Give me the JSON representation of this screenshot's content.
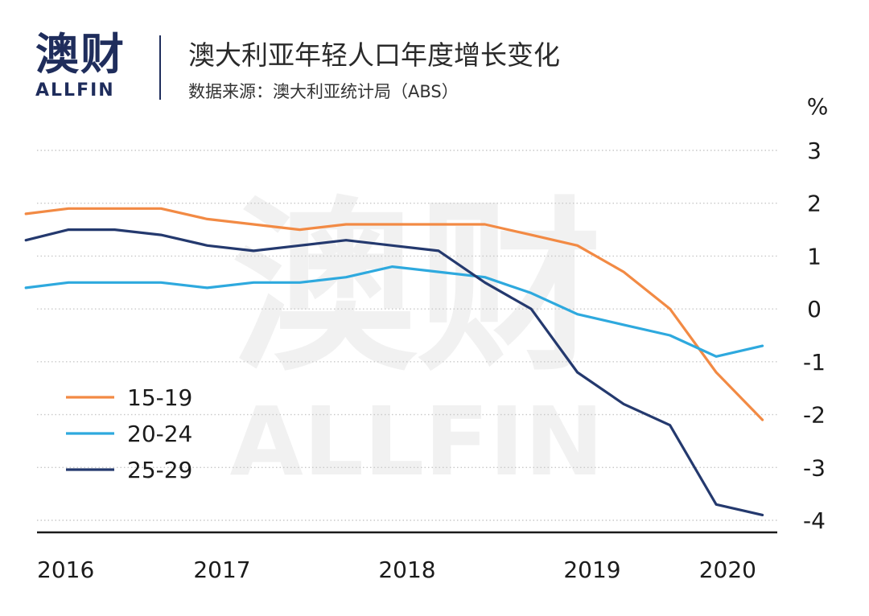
{
  "header": {
    "brand_cn": "澳财",
    "brand_en": "ALLFIN",
    "title": "澳大利亚年轻人口年度增长变化",
    "source": "数据来源：澳大利亚统计局（ABS）"
  },
  "watermark": {
    "cn": "澳财",
    "en": "ALLFIN"
  },
  "colors": {
    "s1519": "#f28a44",
    "s2024": "#2ea9de",
    "s2529": "#24396e",
    "brand": "#1f2d5c"
  },
  "chart_data": {
    "type": "line",
    "ylabel": "%",
    "ylim": [
      -4,
      3
    ],
    "yticks": [
      3,
      2,
      1,
      0,
      -1,
      -2,
      -3,
      -4
    ],
    "ytick_labels": [
      "3",
      "2",
      "1",
      "0",
      "-1",
      "-2",
      "-3",
      "-4"
    ],
    "xlim": [
      2016.0,
      2020.0
    ],
    "xticks": [
      2016,
      2017,
      2018,
      2019,
      2020
    ],
    "xtick_labels": [
      "2016",
      "2017",
      "2018",
      "2019",
      "2020"
    ],
    "grid": "dotted horizontal",
    "legend_position": "bottom-left",
    "series": [
      {
        "name": "15-19",
        "color": "#f28a44",
        "x": [
          2015.94,
          2016.17,
          2016.42,
          2016.67,
          2016.92,
          2017.17,
          2017.42,
          2017.67,
          2017.92,
          2018.17,
          2018.42,
          2018.67,
          2018.92,
          2019.17,
          2019.42,
          2019.67,
          2019.92
        ],
        "y": [
          1.8,
          1.9,
          1.9,
          1.9,
          1.7,
          1.6,
          1.5,
          1.6,
          1.6,
          1.6,
          1.6,
          1.4,
          1.2,
          0.7,
          0.0,
          -1.2,
          -2.1
        ]
      },
      {
        "name": "20-24",
        "color": "#2ea9de",
        "x": [
          2015.94,
          2016.17,
          2016.42,
          2016.67,
          2016.92,
          2017.17,
          2017.42,
          2017.67,
          2017.92,
          2018.17,
          2018.42,
          2018.67,
          2018.92,
          2019.17,
          2019.42,
          2019.67,
          2019.92
        ],
        "y": [
          0.4,
          0.5,
          0.5,
          0.5,
          0.4,
          0.5,
          0.5,
          0.6,
          0.8,
          0.7,
          0.6,
          0.3,
          -0.1,
          -0.3,
          -0.5,
          -0.9,
          -0.7
        ]
      },
      {
        "name": "25-29",
        "color": "#24396e",
        "x": [
          2015.94,
          2016.17,
          2016.42,
          2016.67,
          2016.92,
          2017.17,
          2017.42,
          2017.67,
          2017.92,
          2018.17,
          2018.42,
          2018.67,
          2018.92,
          2019.17,
          2019.42,
          2019.67,
          2019.92
        ],
        "y": [
          1.3,
          1.5,
          1.5,
          1.4,
          1.2,
          1.1,
          1.2,
          1.3,
          1.2,
          1.1,
          0.5,
          0.0,
          -1.2,
          -1.8,
          -2.2,
          -3.7,
          -3.9
        ]
      }
    ]
  }
}
